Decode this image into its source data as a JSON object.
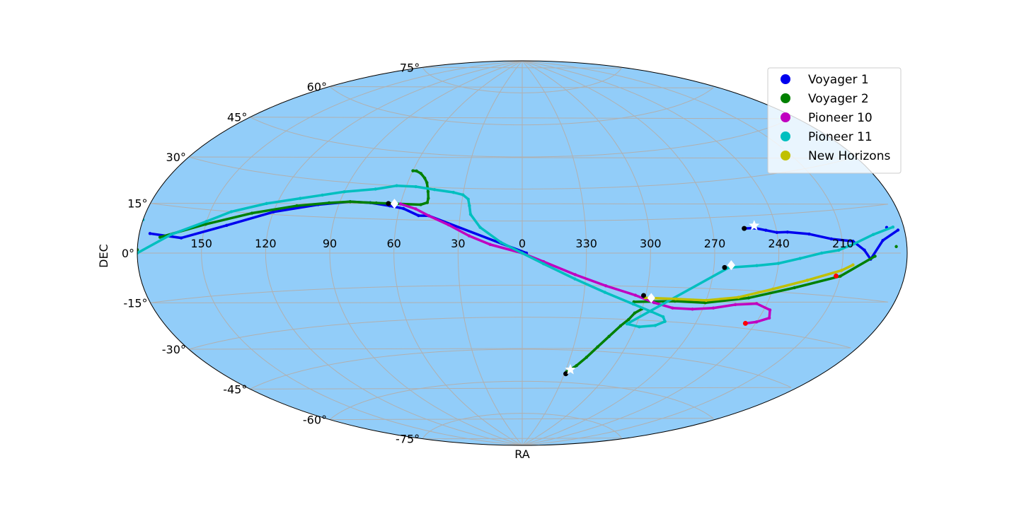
{
  "chart_data": {
    "type": "scatter",
    "projection": "aitoff",
    "xlabel": "RA",
    "ylabel": "DEC",
    "grid": true,
    "legend_placement": "top-right",
    "background_color": "#92cdf9",
    "ra_ticks": [
      "150",
      "120",
      "90",
      "60",
      "30",
      "0",
      "330",
      "300",
      "270",
      "240",
      "210"
    ],
    "dec_ticks": [
      "75°",
      "60°",
      "45°",
      "30°",
      "15°",
      "0°",
      "-15°",
      "-30°",
      "-45°",
      "-60°",
      "-75°"
    ],
    "series": [
      {
        "name": "Voyager 1",
        "color": "#0000ee",
        "points": [
          [
            188,
            8
          ],
          [
            175,
            6
          ],
          [
            160,
            5
          ],
          [
            140,
            10
          ],
          [
            120,
            16
          ],
          [
            100,
            20
          ],
          [
            85,
            22
          ],
          [
            75,
            22
          ],
          [
            65,
            21
          ],
          [
            58,
            20
          ],
          [
            50,
            17
          ],
          [
            45,
            17
          ],
          [
            -2,
            0
          ],
          [
            255,
            10
          ],
          [
            250,
            10
          ],
          [
            245,
            9
          ],
          [
            240,
            8
          ],
          [
            235,
            8
          ],
          [
            225,
            7
          ],
          [
            215,
            5
          ],
          [
            205,
            4
          ],
          [
            200,
            1
          ],
          [
            197,
            -2
          ],
          [
            191,
            4
          ],
          [
            183,
            7
          ]
        ],
        "start": [
          255,
          10
        ],
        "current": [
          250,
          11
        ],
        "marker": "star"
      },
      {
        "name": "Voyager 2",
        "color": "#008000",
        "points": [
          [
            185,
            2
          ],
          [
            170,
            5
          ],
          [
            150,
            10
          ],
          [
            130,
            15
          ],
          [
            110,
            19
          ],
          [
            95,
            21
          ],
          [
            85,
            22
          ],
          [
            72,
            22
          ],
          [
            62,
            22
          ],
          [
            50,
            22
          ],
          [
            47,
            23
          ],
          [
            47,
            25
          ],
          [
            48,
            28
          ],
          [
            50,
            32
          ],
          [
            52,
            34
          ],
          [
            55,
            36
          ],
          [
            58,
            37
          ],
          [
            60,
            37
          ],
          [
            305,
            -22
          ],
          [
            285,
            -21
          ],
          [
            270,
            -21
          ],
          [
            250,
            -18
          ],
          [
            230,
            -13
          ],
          [
            210,
            -8
          ],
          [
            195,
            -1
          ],
          [
            180,
            1
          ],
          [
            300,
            -25
          ],
          [
            303,
            -27
          ],
          [
            305,
            -30
          ],
          [
            308,
            -33
          ],
          [
            312,
            -38
          ],
          [
            316,
            -43
          ],
          [
            320,
            -48
          ],
          [
            324,
            -52
          ],
          [
            327,
            -54
          ],
          [
            329,
            -55
          ]
        ],
        "start": [
          329,
          -56
        ],
        "current": [
          327,
          -54
        ],
        "marker": "star"
      },
      {
        "name": "Pioneer 10",
        "color": "#c000c0",
        "points": [
          [
            60,
            22
          ],
          [
            52,
            20
          ],
          [
            45,
            17
          ],
          [
            35,
            13
          ],
          [
            25,
            8
          ],
          [
            15,
            4
          ],
          [
            0,
            0
          ],
          [
            -10,
            -4
          ],
          [
            -25,
            -10
          ],
          [
            -40,
            -15
          ],
          [
            -55,
            -19
          ],
          [
            -65,
            -22
          ],
          [
            -75,
            -24
          ],
          [
            -85,
            -24
          ],
          [
            -95,
            -23
          ],
          [
            -105,
            -21
          ],
          [
            -115,
            -20
          ],
          [
            -123,
            -22
          ],
          [
            -125,
            -25
          ],
          [
            -120,
            -27
          ],
          [
            -115,
            -28
          ]
        ],
        "start": [
          66,
          22
        ],
        "current": [
          63,
          22
        ],
        "end": [
          245,
          -28
        ],
        "marker": "diamond"
      },
      {
        "name": "Pioneer 11",
        "color": "#00bfbf",
        "points": [
          [
            180,
            0
          ],
          [
            165,
            6
          ],
          [
            150,
            11
          ],
          [
            140,
            15
          ],
          [
            125,
            19
          ],
          [
            110,
            22
          ],
          [
            100,
            24
          ],
          [
            90,
            26
          ],
          [
            75,
            28
          ],
          [
            65,
            30
          ],
          [
            55,
            30
          ],
          [
            45,
            29
          ],
          [
            35,
            28
          ],
          [
            30,
            27
          ],
          [
            27,
            25
          ],
          [
            26,
            22
          ],
          [
            25,
            18
          ],
          [
            20,
            12
          ],
          [
            10,
            5
          ],
          [
            0,
            0
          ],
          [
            -10,
            -5
          ],
          [
            -25,
            -12
          ],
          [
            -40,
            -18
          ],
          [
            -55,
            -23
          ],
          [
            -65,
            -26
          ],
          [
            -72,
            -28
          ],
          [
            -74,
            -30
          ],
          [
            -70,
            -32
          ],
          [
            -62,
            -33
          ],
          [
            -55,
            -32
          ],
          [
            263,
            -6
          ],
          [
            250,
            -5
          ],
          [
            240,
            -4
          ],
          [
            230,
            -2
          ],
          [
            220,
            0
          ],
          [
            212,
            1
          ],
          [
            205,
            3
          ],
          [
            195,
            6
          ],
          [
            185,
            8
          ],
          [
            180,
            10
          ]
        ],
        "start": [
          265,
          -6
        ],
        "current": [
          262,
          -5
        ],
        "marker": "diamond"
      },
      {
        "name": "New Horizons",
        "color": "#c0c000",
        "points": [
          [
            300,
            -20
          ],
          [
            285,
            -20
          ],
          [
            270,
            -20
          ],
          [
            255,
            -18
          ],
          [
            240,
            -14
          ],
          [
            225,
            -10
          ],
          [
            210,
            -6
          ],
          [
            205,
            -4
          ]
        ],
        "start": [
          301,
          -19
        ],
        "current": [
          297,
          -20
        ],
        "end": [
          212,
          -8
        ],
        "marker": "diamond"
      }
    ]
  }
}
